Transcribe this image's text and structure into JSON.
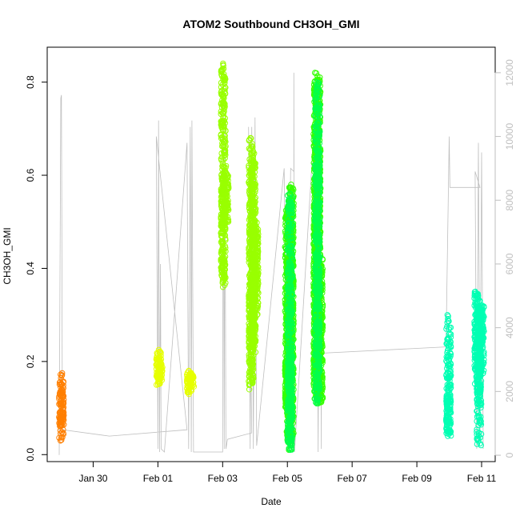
{
  "chart_data": {
    "type": "scatter",
    "title": "ATOM2 Southbound CH3OH_GMI",
    "xlabel": "Date",
    "ylabel": "CH3OH_GMI",
    "x_date_ticks": [
      "Jan 30",
      "Feb 01",
      "Feb 03",
      "Feb 05",
      "Feb 07",
      "Feb 09",
      "Feb 11"
    ],
    "x_tick_days": [
      30,
      32,
      34,
      36,
      38,
      40,
      42
    ],
    "xlim_days": [
      28.58,
      42.42
    ],
    "ylim": [
      -0.015,
      0.875
    ],
    "y_ticks": [
      0.0,
      0.2,
      0.4,
      0.6,
      0.8
    ],
    "y_tick_labels": [
      "0.0",
      "0.2",
      "0.4",
      "0.6",
      "0.8"
    ],
    "y2_label": "",
    "y2lim": [
      -200,
      12800
    ],
    "y2_ticks": [
      0,
      2000,
      4000,
      6000,
      8000,
      10000,
      12000
    ],
    "y2_tick_labels": [
      "0",
      "2000",
      "4000",
      "6000",
      "8000",
      "10000",
      "12000"
    ],
    "grid": false,
    "legend": "none",
    "series": [
      {
        "color": "#FF7F00",
        "segments": [
          {
            "day": 29.02,
            "min": 0.03,
            "max": 0.175,
            "center": 0.1
          }
        ]
      },
      {
        "color": "#E6FF00",
        "segments": [
          {
            "day": 32.02,
            "min": 0.15,
            "max": 0.225,
            "center": 0.18
          },
          {
            "day": 32.07,
            "min": 0.16,
            "max": 0.21,
            "center": 0.18
          },
          {
            "day": 32.97,
            "min": 0.13,
            "max": 0.18,
            "center": 0.16
          },
          {
            "day": 33.04,
            "min": 0.14,
            "max": 0.175,
            "center": 0.16
          }
        ]
      },
      {
        "color": "#99FF00",
        "segments": [
          {
            "day": 34.02,
            "min": 0.36,
            "max": 0.84,
            "center": 0.55
          },
          {
            "day": 34.12,
            "min": 0.5,
            "max": 0.62,
            "center": 0.56
          },
          {
            "day": 34.88,
            "min": 0.14,
            "max": 0.68,
            "center": 0.35
          },
          {
            "day": 34.95,
            "min": 0.22,
            "max": 0.65,
            "center": 0.38
          },
          {
            "day": 35.03,
            "min": 0.3,
            "max": 0.5,
            "center": 0.4
          }
        ]
      },
      {
        "color": "#33FF00",
        "segments": [
          {
            "day": 36.0,
            "min": 0.1,
            "max": 0.54,
            "center": 0.2
          },
          {
            "day": 36.05,
            "min": 0.01,
            "max": 0.54,
            "center": 0.25
          },
          {
            "day": 36.12,
            "min": 0.02,
            "max": 0.58,
            "center": 0.3
          },
          {
            "day": 36.88,
            "min": 0.12,
            "max": 0.82,
            "center": 0.4
          },
          {
            "day": 36.95,
            "min": 0.11,
            "max": 0.81,
            "center": 0.45
          },
          {
            "day": 37.02,
            "min": 0.11,
            "max": 0.42,
            "center": 0.25
          }
        ]
      },
      {
        "color": "#00FF4D",
        "segments": [
          {
            "day": 36.08,
            "min": 0.01,
            "max": 0.56,
            "center": 0.2
          },
          {
            "day": 36.93,
            "min": 0.11,
            "max": 0.8,
            "center": 0.4
          }
        ]
      },
      {
        "color": "#00FFB3",
        "segments": [
          {
            "day": 40.98,
            "min": 0.04,
            "max": 0.3,
            "center": 0.12
          },
          {
            "day": 41.85,
            "min": 0.15,
            "max": 0.35,
            "center": 0.25
          },
          {
            "day": 41.92,
            "min": 0.02,
            "max": 0.33,
            "center": 0.2
          },
          {
            "day": 42.0,
            "min": 0.17,
            "max": 0.32,
            "center": 0.25
          }
        ]
      }
    ],
    "altitude_series": {
      "color": "#bfbfbf",
      "axis": "right",
      "points": [
        [
          28.95,
          9.0
        ],
        [
          29.0,
          11200
        ],
        [
          29.02,
          11300
        ],
        [
          29.05,
          800
        ],
        [
          30.5,
          600
        ],
        [
          32.9,
          800
        ],
        [
          31.95,
          10000
        ],
        [
          32.0,
          200
        ],
        [
          32.02,
          10500
        ],
        [
          32.05,
          100
        ],
        [
          32.08,
          6000
        ],
        [
          32.1,
          200
        ],
        [
          32.2,
          100
        ],
        [
          32.9,
          9800
        ],
        [
          32.95,
          200
        ],
        [
          33.0,
          10300
        ],
        [
          33.03,
          100
        ],
        [
          33.05,
          10500
        ],
        [
          33.1,
          100
        ],
        [
          33.9,
          100
        ],
        [
          34.0,
          100
        ],
        [
          34.02,
          11200
        ],
        [
          34.05,
          200
        ],
        [
          34.07,
          10500
        ],
        [
          34.1,
          200
        ],
        [
          34.15,
          500
        ],
        [
          34.9,
          700
        ],
        [
          34.8,
          10300
        ],
        [
          34.85,
          200
        ],
        [
          34.9,
          10300
        ],
        [
          34.95,
          200
        ],
        [
          35.0,
          10600
        ],
        [
          35.05,
          300
        ],
        [
          35.9,
          9000
        ],
        [
          36.0,
          300
        ],
        [
          36.1,
          9000
        ],
        [
          36.2,
          8900
        ],
        [
          36.2,
          12000
        ],
        [
          36.22,
          100
        ],
        [
          36.9,
          11500
        ],
        [
          36.95,
          100
        ],
        [
          37.0,
          11000
        ],
        [
          37.05,
          200
        ],
        [
          37.05,
          3200
        ],
        [
          40.9,
          3400
        ],
        [
          41.0,
          10000
        ],
        [
          41.02,
          8400
        ],
        [
          41.95,
          8400
        ],
        [
          41.8,
          8900
        ],
        [
          41.85,
          200
        ],
        [
          41.9,
          9800
        ],
        [
          41.95,
          500
        ],
        [
          42.0,
          9500
        ],
        [
          42.05,
          200
        ]
      ]
    }
  }
}
